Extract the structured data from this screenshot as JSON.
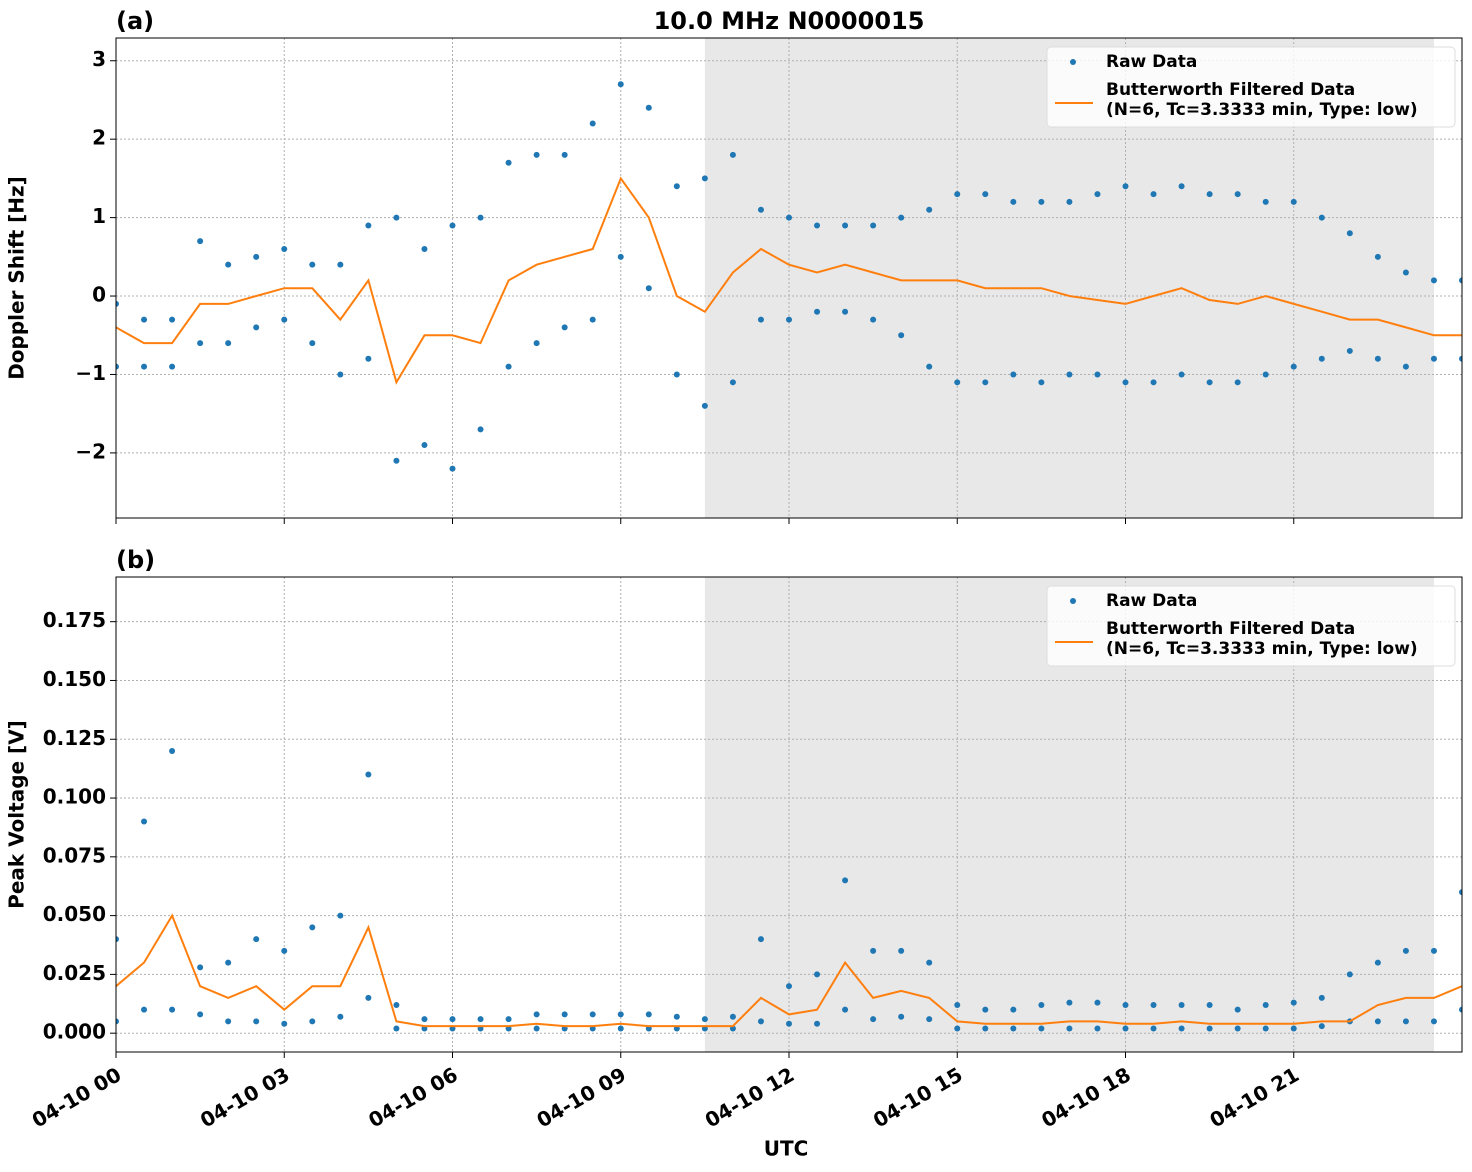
{
  "chart_data": [
    {
      "type": "scatter",
      "title": "10.0 MHz N0000015",
      "panel_label": "(a)",
      "ylabel": "Doppler Shift [Hz]",
      "xlim": [
        0,
        24
      ],
      "xticks": [
        0,
        3,
        6,
        9,
        12,
        15,
        18,
        21
      ],
      "ylim": [
        -2.83,
        3.29
      ],
      "yticks": [
        {
          "value": -2,
          "label": "−2"
        },
        {
          "value": -1,
          "label": "−1"
        },
        0,
        1,
        2,
        3
      ],
      "grid": true,
      "legend": "upper right",
      "shaded_span": [
        10.5,
        23.5
      ],
      "series": [
        {
          "name": "Raw Data",
          "color": "#1f77b4",
          "style": "dots",
          "x": [
            0,
            0,
            0.5,
            0.5,
            1,
            1,
            1.5,
            1.5,
            2,
            2,
            2.5,
            2.5,
            3,
            3,
            3.5,
            3.5,
            4,
            4,
            4.5,
            4.5,
            5,
            5,
            5.5,
            5.5,
            6,
            6,
            6.5,
            6.5,
            7,
            7,
            7.5,
            7.5,
            8,
            8,
            8.5,
            8.5,
            9,
            9,
            9.5,
            9.5,
            10,
            10,
            10.5,
            10.5,
            11,
            11,
            11.5,
            11.5,
            12,
            12,
            12.5,
            12.5,
            13,
            13,
            13.5,
            13.5,
            14,
            14,
            14.5,
            14.5,
            15,
            15,
            15.5,
            15.5,
            16,
            16,
            16.5,
            16.5,
            17,
            17,
            17.5,
            17.5,
            18,
            18,
            18.5,
            18.5,
            19,
            19,
            19.5,
            19.5,
            20,
            20,
            20.5,
            20.5,
            21,
            21,
            21.5,
            21.5,
            22,
            22,
            22.5,
            22.5,
            23,
            23,
            23.5,
            23.5,
            24,
            24
          ],
          "values": [
            -0.1,
            -0.9,
            -0.3,
            -0.9,
            -0.3,
            -0.9,
            0.7,
            -0.6,
            0.4,
            -0.6,
            0.5,
            -0.4,
            0.6,
            -0.3,
            0.4,
            -0.6,
            0.4,
            -1.0,
            0.9,
            -0.8,
            1.0,
            -2.1,
            0.6,
            -1.9,
            0.9,
            -2.2,
            1.0,
            -1.7,
            1.7,
            -0.9,
            1.8,
            -0.6,
            1.8,
            -0.4,
            2.2,
            -0.3,
            2.7,
            0.5,
            2.4,
            0.1,
            1.4,
            -1.0,
            1.5,
            -1.4,
            1.8,
            -1.1,
            1.1,
            -0.3,
            1.0,
            -0.3,
            0.9,
            -0.2,
            0.9,
            -0.2,
            0.9,
            -0.3,
            1.0,
            -0.5,
            1.1,
            -0.9,
            1.3,
            -1.1,
            1.3,
            -1.1,
            1.2,
            -1.0,
            1.2,
            -1.1,
            1.2,
            -1.0,
            1.3,
            -1.0,
            1.4,
            -1.1,
            1.3,
            -1.1,
            1.4,
            -1.0,
            1.3,
            -1.1,
            1.3,
            -1.1,
            1.2,
            -1.0,
            1.2,
            -0.9,
            1.0,
            -0.8,
            0.8,
            -0.7,
            0.5,
            -0.8,
            0.3,
            -0.9,
            0.2,
            -0.8,
            0.2,
            -0.8
          ]
        },
        {
          "name": "Butterworth Filtered Data",
          "params": "(N=6, Tc=3.3333 min, Type: low)",
          "color": "#ff7f0e",
          "style": "line",
          "x": [
            0,
            0.5,
            1,
            1.5,
            2,
            2.5,
            3,
            3.5,
            4,
            4.5,
            5,
            5.5,
            6,
            6.5,
            7,
            7.5,
            8,
            8.5,
            9,
            9.5,
            10,
            10.5,
            11,
            11.5,
            12,
            12.5,
            13,
            13.5,
            14,
            14.5,
            15,
            15.5,
            16,
            16.5,
            17,
            17.5,
            18,
            18.5,
            19,
            19.5,
            20,
            20.5,
            21,
            21.5,
            22,
            22.5,
            23,
            23.5,
            24
          ],
          "values": [
            -0.4,
            -0.6,
            -0.6,
            -0.1,
            -0.1,
            0,
            0.1,
            0.1,
            -0.3,
            0.2,
            -1.1,
            -0.5,
            -0.5,
            -0.6,
            0.2,
            0.4,
            0.5,
            0.6,
            1.5,
            1.0,
            0,
            -0.2,
            0.3,
            0.6,
            0.4,
            0.3,
            0.4,
            0.3,
            0.2,
            0.2,
            0.2,
            0.1,
            0.1,
            0.1,
            0.0,
            -0.05,
            -0.1,
            0.0,
            0.1,
            -0.05,
            -0.1,
            0,
            -0.1,
            -0.2,
            -0.3,
            -0.3,
            -0.4,
            -0.5,
            -0.5
          ]
        }
      ]
    },
    {
      "type": "scatter",
      "panel_label": "(b)",
      "ylabel": "Peak Voltage [V]",
      "xlabel": "UTC",
      "xlim": [
        0,
        24
      ],
      "xticks": [
        {
          "value": 0,
          "label": "04-10 00"
        },
        {
          "value": 3,
          "label": "04-10 03"
        },
        {
          "value": 6,
          "label": "04-10 06"
        },
        {
          "value": 9,
          "label": "04-10 09"
        },
        {
          "value": 12,
          "label": "04-10 12"
        },
        {
          "value": 15,
          "label": "04-10 15"
        },
        {
          "value": 18,
          "label": "04-10 18"
        },
        {
          "value": 21,
          "label": "04-10 21"
        }
      ],
      "ylim": [
        -0.008,
        0.194
      ],
      "yticks": [
        {
          "value": 0,
          "label": "0.000"
        },
        0.025,
        {
          "value": 0.05,
          "label": "0.050"
        },
        0.075,
        {
          "value": 0.1,
          "label": "0.100"
        },
        0.125,
        {
          "value": 0.15,
          "label": "0.150"
        },
        0.175
      ],
      "grid": true,
      "legend": "upper right",
      "shaded_span": [
        10.5,
        23.5
      ],
      "series": [
        {
          "name": "Raw Data",
          "color": "#1f77b4",
          "style": "dots",
          "x": [
            0,
            0,
            0.5,
            0.5,
            1,
            1,
            1.5,
            1.5,
            2,
            2,
            2.5,
            2.5,
            3,
            3,
            3.5,
            3.5,
            4,
            4,
            4.5,
            4.5,
            5,
            5,
            5.5,
            5.5,
            6,
            6,
            6.5,
            6.5,
            7,
            7,
            7.5,
            7.5,
            8,
            8,
            8.5,
            8.5,
            9,
            9,
            9.5,
            9.5,
            10,
            10,
            10.5,
            10.5,
            11,
            11,
            11.5,
            11.5,
            12,
            12,
            12.5,
            12.5,
            13,
            13,
            13.5,
            13.5,
            14,
            14,
            14.5,
            14.5,
            15,
            15,
            15.5,
            15.5,
            16,
            16,
            16.5,
            16.5,
            17,
            17,
            17.5,
            17.5,
            18,
            18,
            18.5,
            18.5,
            19,
            19,
            19.5,
            19.5,
            20,
            20,
            20.5,
            20.5,
            21,
            21,
            21.5,
            21.5,
            22,
            22,
            22.5,
            22.5,
            23,
            23,
            23.5,
            23.5,
            24,
            24
          ],
          "values": [
            0.04,
            0.005,
            0.09,
            0.01,
            0.12,
            0.01,
            0.028,
            0.008,
            0.03,
            0.005,
            0.04,
            0.005,
            0.035,
            0.004,
            0.045,
            0.005,
            0.05,
            0.007,
            0.11,
            0.015,
            0.012,
            0.002,
            0.006,
            0.002,
            0.006,
            0.002,
            0.006,
            0.002,
            0.006,
            0.002,
            0.008,
            0.002,
            0.008,
            0.002,
            0.008,
            0.002,
            0.008,
            0.002,
            0.008,
            0.002,
            0.007,
            0.002,
            0.006,
            0.002,
            0.007,
            0.002,
            0.04,
            0.005,
            0.02,
            0.004,
            0.025,
            0.004,
            0.065,
            0.01,
            0.035,
            0.006,
            0.035,
            0.007,
            0.03,
            0.006,
            0.012,
            0.002,
            0.01,
            0.002,
            0.01,
            0.002,
            0.012,
            0.002,
            0.013,
            0.002,
            0.013,
            0.002,
            0.012,
            0.002,
            0.012,
            0.002,
            0.012,
            0.002,
            0.012,
            0.002,
            0.01,
            0.002,
            0.012,
            0.002,
            0.013,
            0.002,
            0.015,
            0.003,
            0.025,
            0.005,
            0.03,
            0.005,
            0.035,
            0.005,
            0.035,
            0.005,
            0.06,
            0.01
          ]
        },
        {
          "name": "Butterworth Filtered Data",
          "params": "(N=6, Tc=3.3333 min, Type: low)",
          "color": "#ff7f0e",
          "style": "line",
          "x": [
            0,
            0.5,
            1,
            1.5,
            2,
            2.5,
            3,
            3.5,
            4,
            4.5,
            5,
            5.5,
            6,
            6.5,
            7,
            7.5,
            8,
            8.5,
            9,
            9.5,
            10,
            10.5,
            11,
            11.5,
            12,
            12.5,
            13,
            13.5,
            14,
            14.5,
            15,
            15.5,
            16,
            16.5,
            17,
            17.5,
            18,
            18.5,
            19,
            19.5,
            20,
            20.5,
            21,
            21.5,
            22,
            22.5,
            23,
            23.5,
            24
          ],
          "values": [
            0.02,
            0.03,
            0.05,
            0.02,
            0.015,
            0.02,
            0.01,
            0.02,
            0.02,
            0.045,
            0.005,
            0.003,
            0.003,
            0.003,
            0.003,
            0.004,
            0.003,
            0.003,
            0.004,
            0.003,
            0.003,
            0.003,
            0.003,
            0.015,
            0.008,
            0.01,
            0.03,
            0.015,
            0.018,
            0.015,
            0.005,
            0.004,
            0.004,
            0.004,
            0.005,
            0.005,
            0.004,
            0.004,
            0.005,
            0.004,
            0.004,
            0.004,
            0.004,
            0.005,
            0.005,
            0.012,
            0.015,
            0.015,
            0.02
          ]
        }
      ]
    }
  ]
}
